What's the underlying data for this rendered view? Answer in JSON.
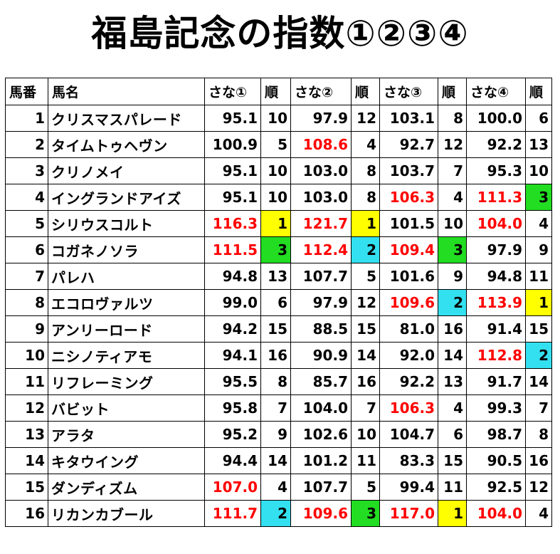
{
  "title": "福島記念の指数①②③④",
  "headers": [
    "馬番",
    "馬名",
    "さな①",
    "順",
    "さな②",
    "順",
    "さな③",
    "順",
    "さな④",
    "順"
  ],
  "colors": {
    "highlight_text": "#ff0000",
    "rank1": "#ffff00",
    "rank2": "#33e0f0",
    "rank3": "#22dd22"
  },
  "rows": [
    {
      "no": "1",
      "name": "クリスマスパレード",
      "s1": "95.1",
      "r1": "10",
      "s2": "97.9",
      "r2": "12",
      "s3": "103.1",
      "r3": "8",
      "s4": "100.0",
      "r4": "6"
    },
    {
      "no": "2",
      "name": "タイムトゥヘヴン",
      "s1": "100.9",
      "r1": "5",
      "s2": "108.6",
      "r2": "4",
      "s3": "92.7",
      "r3": "12",
      "s4": "92.2",
      "r4": "13"
    },
    {
      "no": "3",
      "name": "クリノメイ",
      "s1": "95.1",
      "r1": "10",
      "s2": "103.0",
      "r2": "8",
      "s3": "103.7",
      "r3": "7",
      "s4": "95.3",
      "r4": "10"
    },
    {
      "no": "4",
      "name": "イングランドアイズ",
      "s1": "95.1",
      "r1": "10",
      "s2": "103.0",
      "r2": "8",
      "s3": "106.3",
      "r3": "4",
      "s4": "111.3",
      "r4": "3"
    },
    {
      "no": "5",
      "name": "シリウスコルト",
      "s1": "116.3",
      "r1": "1",
      "s2": "121.7",
      "r2": "1",
      "s3": "101.5",
      "r3": "10",
      "s4": "104.0",
      "r4": "4"
    },
    {
      "no": "6",
      "name": "コガネノソラ",
      "s1": "111.5",
      "r1": "3",
      "s2": "112.4",
      "r2": "2",
      "s3": "109.4",
      "r3": "3",
      "s4": "97.9",
      "r4": "9"
    },
    {
      "no": "7",
      "name": "パレハ",
      "s1": "94.8",
      "r1": "13",
      "s2": "107.7",
      "r2": "5",
      "s3": "101.6",
      "r3": "9",
      "s4": "94.8",
      "r4": "11"
    },
    {
      "no": "8",
      "name": "エコロヴァルツ",
      "s1": "99.0",
      "r1": "6",
      "s2": "97.9",
      "r2": "12",
      "s3": "109.6",
      "r3": "2",
      "s4": "113.9",
      "r4": "1"
    },
    {
      "no": "9",
      "name": "アンリーロード",
      "s1": "94.2",
      "r1": "15",
      "s2": "88.5",
      "r2": "15",
      "s3": "81.0",
      "r3": "16",
      "s4": "91.4",
      "r4": "15"
    },
    {
      "no": "10",
      "name": "ニシノティアモ",
      "s1": "94.1",
      "r1": "16",
      "s2": "90.9",
      "r2": "14",
      "s3": "92.0",
      "r3": "14",
      "s4": "112.8",
      "r4": "2"
    },
    {
      "no": "11",
      "name": "リフレーミング",
      "s1": "95.5",
      "r1": "8",
      "s2": "85.7",
      "r2": "16",
      "s3": "92.2",
      "r3": "13",
      "s4": "91.7",
      "r4": "14"
    },
    {
      "no": "12",
      "name": "バビット",
      "s1": "95.8",
      "r1": "7",
      "s2": "104.0",
      "r2": "7",
      "s3": "106.3",
      "r3": "4",
      "s4": "99.3",
      "r4": "7"
    },
    {
      "no": "13",
      "name": "アラタ",
      "s1": "95.2",
      "r1": "9",
      "s2": "102.6",
      "r2": "10",
      "s3": "104.7",
      "r3": "6",
      "s4": "98.7",
      "r4": "8"
    },
    {
      "no": "14",
      "name": "キタウイング",
      "s1": "94.4",
      "r1": "14",
      "s2": "101.2",
      "r2": "11",
      "s3": "83.3",
      "r3": "15",
      "s4": "90.5",
      "r4": "16"
    },
    {
      "no": "15",
      "name": "ダンディズム",
      "s1": "107.0",
      "r1": "4",
      "s2": "107.7",
      "r2": "5",
      "s3": "99.4",
      "r3": "11",
      "s4": "92.5",
      "r4": "12"
    },
    {
      "no": "16",
      "name": "リカンカブール",
      "s1": "111.7",
      "r1": "2",
      "s2": "109.6",
      "r2": "3",
      "s3": "117.0",
      "r3": "1",
      "s4": "104.0",
      "r4": "4"
    }
  ]
}
